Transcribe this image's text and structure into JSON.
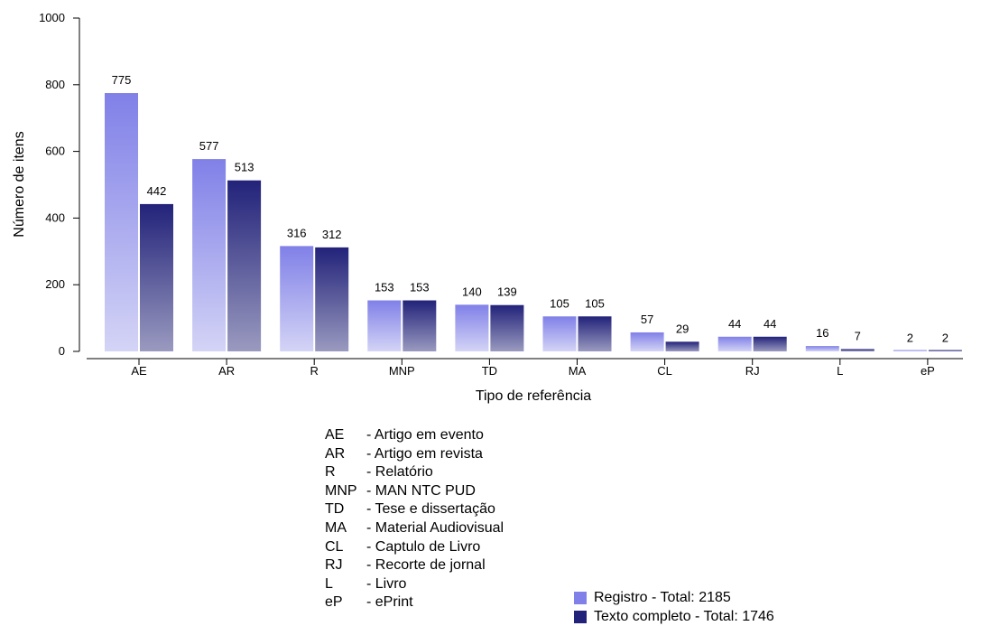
{
  "chart_data": {
    "type": "bar",
    "xlabel": "Tipo de referência",
    "ylabel": "Número de itens",
    "ylim": [
      0,
      1000
    ],
    "yticks": [
      "0",
      "200",
      "400",
      "600",
      "800",
      "1000"
    ],
    "categories": [
      "AE",
      "AR",
      "R",
      "MNP",
      "TD",
      "MA",
      "CL",
      "RJ",
      "L",
      "eP"
    ],
    "series": [
      {
        "name": "Registro - Total: 2185",
        "values": [
          775,
          577,
          316,
          153,
          140,
          105,
          57,
          44,
          16,
          2
        ],
        "color": "#8080e8"
      },
      {
        "name": "Texto completo - Total: 1746",
        "values": [
          442,
          513,
          312,
          153,
          139,
          105,
          29,
          44,
          7,
          2
        ],
        "color": "#22227a"
      }
    ],
    "gradient_bottom": [
      "#d4d4f6",
      "#9a9ac0"
    ],
    "legend_position": "bottom-right",
    "grid": false
  },
  "abbreviations": [
    {
      "code": "AE",
      "text": "- Artigo em evento"
    },
    {
      "code": "AR",
      "text": "- Artigo em revista"
    },
    {
      "code": "R",
      "text": "- Relatório"
    },
    {
      "code": "MNP",
      "text": "- MAN NTC PUD"
    },
    {
      "code": "TD",
      "text": "- Tese e dissertação"
    },
    {
      "code": "MA",
      "text": "- Material Audiovisual"
    },
    {
      "code": "CL",
      "text": "- Captulo de Livro"
    },
    {
      "code": "RJ",
      "text": "- Recorte de jornal"
    },
    {
      "code": "L",
      "text": "- Livro"
    },
    {
      "code": "eP",
      "text": "- ePrint"
    }
  ]
}
